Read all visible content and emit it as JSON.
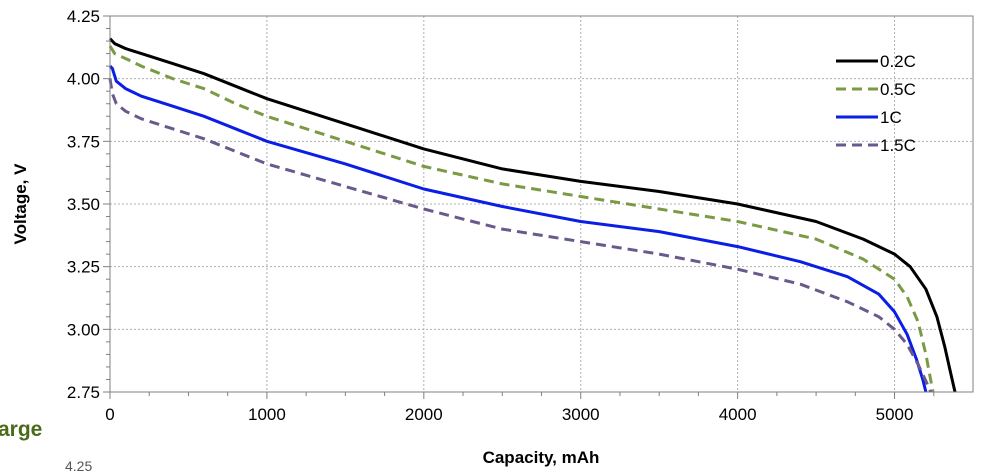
{
  "chart_data": {
    "type": "line",
    "title": "",
    "xlabel": "Capacity, mAh",
    "ylabel": "Voltage, V",
    "xlim": [
      0,
      5500
    ],
    "ylim": [
      2.75,
      4.25
    ],
    "x_ticks": [
      0,
      1000,
      2000,
      3000,
      4000,
      5000
    ],
    "x_tick_labels": [
      "0",
      "1000",
      "2000",
      "3000",
      "4000",
      "5000"
    ],
    "y_ticks": [
      2.75,
      3.0,
      3.25,
      3.5,
      3.75,
      4.0,
      4.25
    ],
    "y_tick_labels": [
      "2.75",
      "3.00",
      "3.25",
      "3.50",
      "3.75",
      "4.00",
      "4.25"
    ],
    "grid": true,
    "legend_position": "top-right",
    "series": [
      {
        "name": "0.2C",
        "color": "#000000",
        "dash": "solid",
        "points": [
          [
            0,
            4.16
          ],
          [
            30,
            4.14
          ],
          [
            100,
            4.12
          ],
          [
            200,
            4.1
          ],
          [
            400,
            4.06
          ],
          [
            600,
            4.02
          ],
          [
            800,
            3.97
          ],
          [
            1000,
            3.92
          ],
          [
            1500,
            3.82
          ],
          [
            2000,
            3.72
          ],
          [
            2500,
            3.64
          ],
          [
            3000,
            3.59
          ],
          [
            3500,
            3.55
          ],
          [
            4000,
            3.5
          ],
          [
            4500,
            3.43
          ],
          [
            4800,
            3.36
          ],
          [
            5000,
            3.3
          ],
          [
            5100,
            3.25
          ],
          [
            5200,
            3.16
          ],
          [
            5270,
            3.05
          ],
          [
            5320,
            2.93
          ],
          [
            5360,
            2.82
          ],
          [
            5385,
            2.75
          ]
        ]
      },
      {
        "name": "0.5C",
        "color": "#7a9a44",
        "dash": "dashed",
        "points": [
          [
            0,
            4.13
          ],
          [
            30,
            4.1
          ],
          [
            100,
            4.08
          ],
          [
            200,
            4.05
          ],
          [
            400,
            4.0
          ],
          [
            600,
            3.96
          ],
          [
            800,
            3.9
          ],
          [
            1000,
            3.85
          ],
          [
            1500,
            3.75
          ],
          [
            2000,
            3.65
          ],
          [
            2500,
            3.58
          ],
          [
            3000,
            3.53
          ],
          [
            3500,
            3.48
          ],
          [
            4000,
            3.43
          ],
          [
            4500,
            3.36
          ],
          [
            4800,
            3.28
          ],
          [
            5000,
            3.2
          ],
          [
            5080,
            3.13
          ],
          [
            5150,
            3.03
          ],
          [
            5200,
            2.9
          ],
          [
            5230,
            2.8
          ],
          [
            5245,
            2.75
          ]
        ]
      },
      {
        "name": "1C",
        "color": "#0a1ee6",
        "dash": "solid",
        "points": [
          [
            0,
            4.05
          ],
          [
            15,
            4.04
          ],
          [
            40,
            3.99
          ],
          [
            100,
            3.96
          ],
          [
            200,
            3.93
          ],
          [
            400,
            3.89
          ],
          [
            600,
            3.85
          ],
          [
            800,
            3.8
          ],
          [
            1000,
            3.75
          ],
          [
            1500,
            3.66
          ],
          [
            2000,
            3.56
          ],
          [
            2500,
            3.49
          ],
          [
            3000,
            3.43
          ],
          [
            3500,
            3.39
          ],
          [
            4000,
            3.33
          ],
          [
            4400,
            3.27
          ],
          [
            4700,
            3.21
          ],
          [
            4900,
            3.14
          ],
          [
            5000,
            3.07
          ],
          [
            5080,
            2.98
          ],
          [
            5140,
            2.88
          ],
          [
            5180,
            2.8
          ],
          [
            5200,
            2.75
          ]
        ]
      },
      {
        "name": "1.5C",
        "color": "#6a5a8c",
        "dash": "dashed",
        "points": [
          [
            0,
            4.0
          ],
          [
            15,
            3.94
          ],
          [
            40,
            3.9
          ],
          [
            100,
            3.87
          ],
          [
            200,
            3.84
          ],
          [
            400,
            3.8
          ],
          [
            600,
            3.76
          ],
          [
            800,
            3.71
          ],
          [
            1000,
            3.66
          ],
          [
            1500,
            3.57
          ],
          [
            2000,
            3.48
          ],
          [
            2500,
            3.4
          ],
          [
            3000,
            3.35
          ],
          [
            3500,
            3.3
          ],
          [
            4000,
            3.24
          ],
          [
            4400,
            3.18
          ],
          [
            4700,
            3.11
          ],
          [
            4900,
            3.05
          ],
          [
            5000,
            3.0
          ],
          [
            5080,
            2.94
          ],
          [
            5150,
            2.86
          ],
          [
            5210,
            2.78
          ],
          [
            5230,
            2.75
          ]
        ]
      }
    ]
  },
  "clipped_text": {
    "partial_title": "arge",
    "partial_tick": "4.25"
  }
}
